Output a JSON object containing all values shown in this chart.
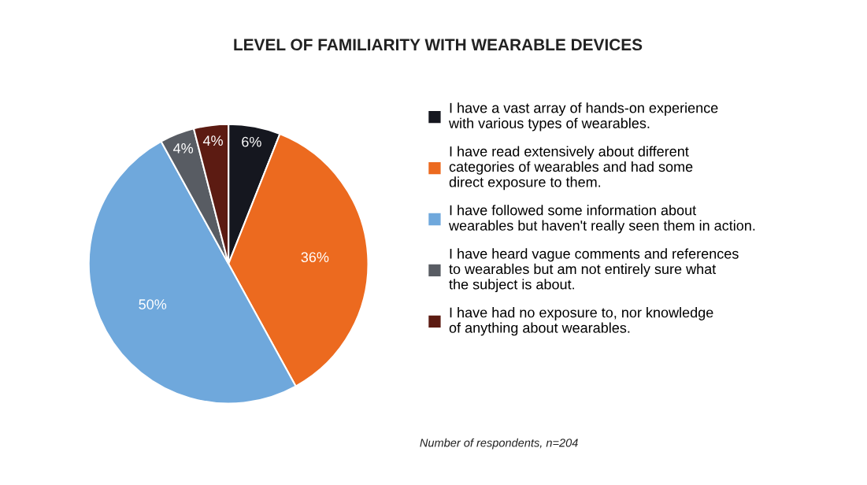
{
  "chart_data": {
    "type": "pie",
    "title": "LEVEL OF FAMILIARITY WITH WEARABLE DEVICES",
    "categories": [
      "I have a vast array of hands-on experience\nwith various types of wearables.",
      "I have read extensively about different\ncategories of wearables and had some\ndirect exposure to them.",
      "I have followed some information about\nwearables but haven't really seen them in action.",
      "I have heard vague comments and references\nto wearables but am not entirely sure what\nthe subject is about.",
      "I have had no exposure to, nor knowledge\nof anything about wearables."
    ],
    "values": [
      6,
      36,
      50,
      4,
      4
    ],
    "value_labels": [
      "6%",
      "36%",
      "50%",
      "4%",
      "4%"
    ],
    "colors": [
      "#15171f",
      "#ec6a1f",
      "#6fa8dc",
      "#585c63",
      "#5c1b12"
    ],
    "legend": "right",
    "annotations": [
      "Number of respondents, n=204"
    ]
  }
}
